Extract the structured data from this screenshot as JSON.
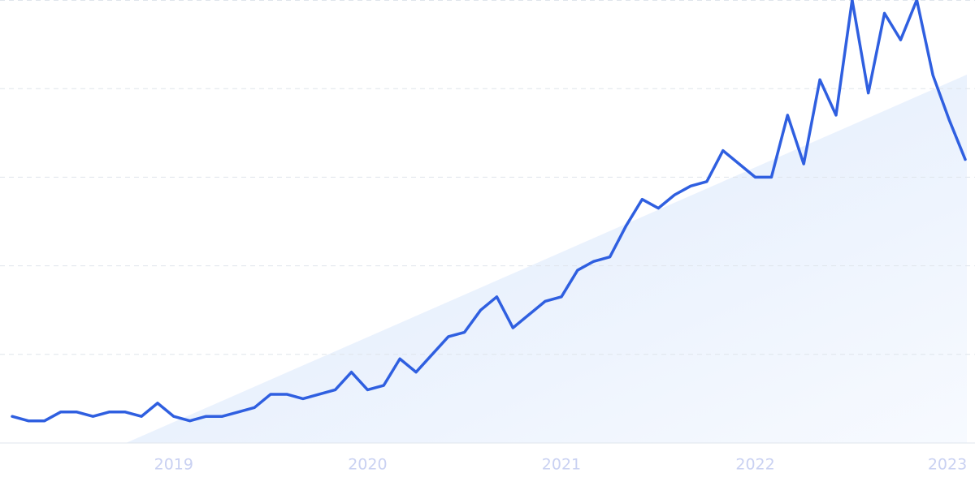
{
  "chart_data": {
    "type": "line",
    "categories": [
      null,
      null,
      null,
      null,
      null,
      null,
      null,
      null,
      null,
      null,
      "2019",
      null,
      null,
      null,
      null,
      null,
      null,
      null,
      null,
      null,
      null,
      null,
      "2020",
      null,
      null,
      null,
      null,
      null,
      null,
      null,
      null,
      null,
      null,
      null,
      "2021",
      null,
      null,
      null,
      null,
      null,
      null,
      null,
      null,
      null,
      null,
      null,
      "2022",
      null,
      null,
      null,
      null,
      null,
      null,
      null,
      null,
      null,
      null,
      null,
      "2023",
      null
    ],
    "series": [
      {
        "color": "#2f5fe0",
        "values": [
          6,
          5,
          5,
          7,
          7,
          6,
          7,
          7,
          6,
          9,
          6,
          5,
          6,
          6,
          7,
          8,
          11,
          11,
          10,
          11,
          12,
          16,
          12,
          13,
          19,
          16,
          20,
          24,
          25,
          30,
          33,
          26,
          29,
          32,
          33,
          39,
          41,
          42,
          49,
          55,
          53,
          56,
          58,
          59,
          66,
          63,
          60,
          60,
          74,
          63,
          82,
          74,
          100,
          79,
          97,
          91,
          100,
          83,
          73,
          64
        ]
      }
    ],
    "ylim": [
      0,
      100
    ],
    "yticks": [
      0,
      20,
      40,
      60,
      80,
      100
    ],
    "grid": true
  }
}
